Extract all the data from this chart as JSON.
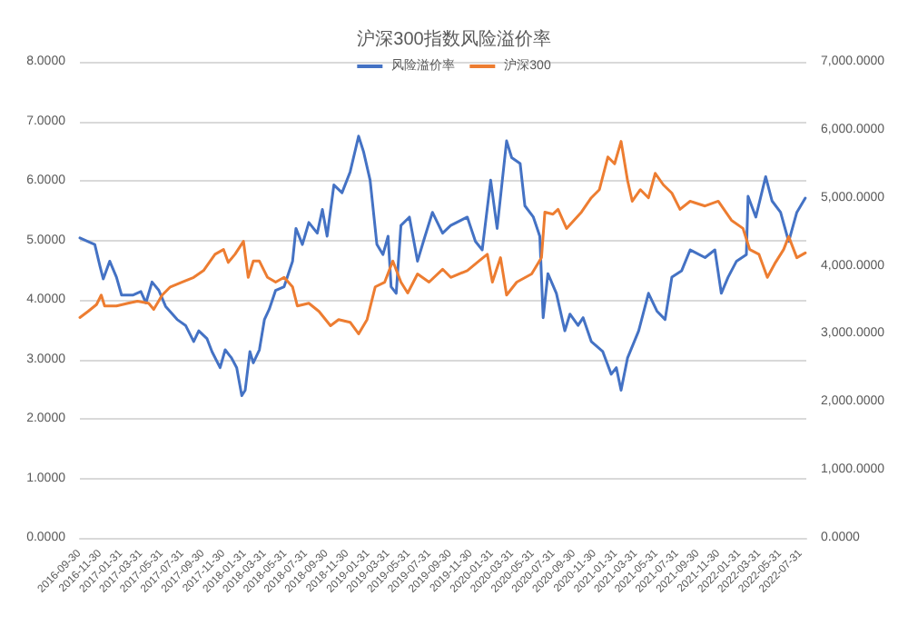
{
  "chart_data": {
    "type": "line",
    "title": "沪深300指数风险溢价率",
    "legend": "top",
    "grid": "y",
    "x": [
      "2016-09-30",
      "2016-10-24",
      "2016-11-13",
      "2016-11-28",
      "2016-12-08",
      "2016-12-27",
      "2017-01-16",
      "2017-01-31",
      "2017-03-05",
      "2017-03-29",
      "2017-04-13",
      "2017-05-01",
      "2017-05-21",
      "2017-06-10",
      "2017-07-14",
      "2017-08-08",
      "2017-09-01",
      "2017-09-16",
      "2017-10-10",
      "2017-10-25",
      "2017-11-18",
      "2017-12-03",
      "2017-12-22",
      "2018-01-06",
      "2018-01-21",
      "2018-01-31",
      "2018-02-14",
      "2018-02-24",
      "2018-03-14",
      "2018-03-29",
      "2018-04-12",
      "2018-05-01",
      "2018-05-26",
      "2018-06-20",
      "2018-06-30",
      "2018-07-19",
      "2018-08-07",
      "2018-09-01",
      "2018-09-16",
      "2018-09-30",
      "2018-10-20",
      "2018-11-13",
      "2018-12-07",
      "2019-01-01",
      "2019-01-16",
      "2019-02-04",
      "2019-02-24",
      "2019-03-14",
      "2019-03-29",
      "2019-04-07",
      "2019-04-22",
      "2019-05-06",
      "2019-05-31",
      "2019-06-24",
      "2019-07-14",
      "2019-08-07",
      "2019-09-06",
      "2019-09-30",
      "2019-11-18",
      "2019-12-12",
      "2020-01-01",
      "2020-01-26",
      "2020-02-14",
      "2020-03-04",
      "2020-03-13",
      "2020-03-28",
      "2020-04-22",
      "2020-05-06",
      "2020-05-31",
      "2020-06-19",
      "2020-06-29",
      "2020-07-13",
      "2020-08-07",
      "2020-09-01",
      "2020-09-16",
      "2020-10-10",
      "2020-10-25",
      "2020-11-18",
      "2020-12-22",
      "2021-01-16",
      "2021-01-31",
      "2021-02-14",
      "2021-03-05",
      "2021-04-07",
      "2021-05-06",
      "2021-05-31",
      "2021-06-24",
      "2021-07-14",
      "2021-08-12",
      "2021-09-06",
      "2021-10-20",
      "2021-11-18",
      "2021-12-07",
      "2021-12-27",
      "2022-01-21",
      "2022-02-19",
      "2022-02-24",
      "2022-03-19",
      "2022-04-17",
      "2022-05-06",
      "2022-05-31",
      "2022-06-24",
      "2022-07-18",
      "2022-08-12"
    ],
    "series": [
      {
        "name": "风险溢价率",
        "color": "#4472c4",
        "values": [
          5.04,
          4.98,
          4.93,
          4.57,
          4.35,
          4.65,
          4.38,
          4.08,
          4.08,
          4.14,
          3.95,
          4.3,
          4.16,
          3.89,
          3.67,
          3.57,
          3.3,
          3.48,
          3.35,
          3.13,
          2.86,
          3.16,
          3.02,
          2.86,
          2.39,
          2.48,
          3.13,
          2.94,
          3.16,
          3.67,
          3.84,
          4.16,
          4.22,
          4.65,
          5.2,
          4.93,
          5.3,
          5.12,
          5.52,
          5.07,
          5.93,
          5.8,
          6.15,
          6.75,
          6.48,
          6.01,
          4.93,
          4.76,
          5.07,
          4.22,
          4.11,
          5.25,
          5.39,
          4.65,
          5.03,
          5.47,
          5.12,
          5.25,
          5.39,
          4.98,
          4.84,
          6.01,
          5.2,
          6.2,
          6.67,
          6.39,
          6.29,
          5.58,
          5.39,
          5.07,
          3.7,
          4.44,
          4.11,
          3.48,
          3.76,
          3.57,
          3.7,
          3.3,
          3.13,
          2.75,
          2.86,
          2.48,
          3.02,
          3.48,
          4.11,
          3.81,
          3.67,
          4.38,
          4.49,
          4.84,
          4.71,
          4.84,
          4.11,
          4.38,
          4.65,
          4.76,
          5.74,
          5.39,
          6.07,
          5.66,
          5.47,
          4.98,
          5.47,
          5.71
        ]
      },
      {
        "name": "沪深300",
        "color": "#ed7d31",
        "axis": "y2",
        "x": [
          "2016-09-30",
          "2016-10-24",
          "2016-11-18",
          "2016-12-02",
          "2016-12-12",
          "2017-01-16",
          "2017-02-19",
          "2017-03-19",
          "2017-04-21",
          "2017-05-06",
          "2017-05-31",
          "2017-06-24",
          "2017-07-28",
          "2017-09-01",
          "2017-09-30",
          "2017-11-03",
          "2017-11-28",
          "2017-12-12",
          "2018-01-01",
          "2018-01-26",
          "2018-02-09",
          "2018-02-24",
          "2018-03-14",
          "2018-04-07",
          "2018-05-01",
          "2018-05-26",
          "2018-06-20",
          "2018-07-04",
          "2018-08-07",
          "2018-09-06",
          "2018-10-10",
          "2018-11-03",
          "2018-12-07",
          "2019-01-01",
          "2019-01-26",
          "2019-02-19",
          "2019-03-19",
          "2019-04-12",
          "2019-05-06",
          "2019-05-26",
          "2019-06-24",
          "2019-07-28",
          "2019-09-06",
          "2019-09-30",
          "2019-11-18",
          "2019-12-22",
          "2020-01-16",
          "2020-01-31",
          "2020-02-24",
          "2020-03-13",
          "2020-04-12",
          "2020-05-26",
          "2020-06-24",
          "2020-07-04",
          "2020-07-28",
          "2020-08-12",
          "2020-09-06",
          "2020-10-20",
          "2020-11-18",
          "2020-12-12",
          "2021-01-06",
          "2021-01-26",
          "2021-02-14",
          "2021-03-05",
          "2021-03-19",
          "2021-04-12",
          "2021-05-06",
          "2021-05-26",
          "2021-06-19",
          "2021-07-14",
          "2021-08-07",
          "2021-09-06",
          "2021-10-20",
          "2021-11-28",
          "2022-01-06",
          "2022-02-09",
          "2022-03-01",
          "2022-03-28",
          "2022-04-22",
          "2022-05-16",
          "2022-06-09",
          "2022-06-24",
          "2022-07-18",
          "2022-08-12"
        ],
        "values": [
          3240,
          3330,
          3430,
          3570,
          3410,
          3410,
          3450,
          3480,
          3450,
          3360,
          3570,
          3690,
          3760,
          3830,
          3930,
          4170,
          4240,
          4050,
          4170,
          4360,
          3830,
          4070,
          4070,
          3830,
          3760,
          3830,
          3690,
          3410,
          3450,
          3330,
          3120,
          3210,
          3170,
          3000,
          3210,
          3690,
          3760,
          4070,
          3760,
          3600,
          3880,
          3760,
          3950,
          3830,
          3930,
          4070,
          4170,
          3760,
          4120,
          3570,
          3760,
          3880,
          4120,
          4790,
          4760,
          4830,
          4550,
          4790,
          5000,
          5120,
          5600,
          5500,
          5830,
          5260,
          4950,
          5120,
          5000,
          5360,
          5190,
          5070,
          4830,
          4950,
          4880,
          4950,
          4670,
          4550,
          4240,
          4170,
          3830,
          4050,
          4240,
          4430,
          4120,
          4190
        ]
      }
    ],
    "xlim": [
      "2016-09-30",
      "2022-08-15"
    ],
    "xticks": [
      "2016-09-30",
      "2016-11-30",
      "2017-01-31",
      "2017-03-31",
      "2017-05-31",
      "2017-07-31",
      "2017-09-30",
      "2017-11-30",
      "2018-01-31",
      "2018-03-31",
      "2018-05-31",
      "2018-07-31",
      "2018-09-30",
      "2018-11-30",
      "2019-01-31",
      "2019-03-31",
      "2019-05-31",
      "2019-07-31",
      "2019-09-30",
      "2019-11-30",
      "2020-01-31",
      "2020-03-31",
      "2020-05-31",
      "2020-07-31",
      "2020-09-30",
      "2020-11-30",
      "2021-01-31",
      "2021-03-31",
      "2021-05-31",
      "2021-07-31",
      "2021-09-30",
      "2021-11-30",
      "2022-01-31",
      "2022-03-31",
      "2022-05-31",
      "2022-07-31"
    ],
    "ylim": [
      0,
      8
    ],
    "yticks": [
      {
        "value": 0,
        "label": "0.0000"
      },
      {
        "value": 1,
        "label": "1.0000"
      },
      {
        "value": 2,
        "label": "2.0000"
      },
      {
        "value": 3,
        "label": "3.0000"
      },
      {
        "value": 4,
        "label": "4.0000"
      },
      {
        "value": 5,
        "label": "5.0000"
      },
      {
        "value": 6,
        "label": "6.0000"
      },
      {
        "value": 7,
        "label": "7.0000"
      },
      {
        "value": 8,
        "label": "8.0000"
      }
    ],
    "y2lim": [
      0,
      7000
    ],
    "y2ticks": [
      {
        "value": 0,
        "label": "0.0000"
      },
      {
        "value": 1000,
        "label": "1,000.0000"
      },
      {
        "value": 2000,
        "label": "2,000.0000"
      },
      {
        "value": 3000,
        "label": "3,000.0000"
      },
      {
        "value": 4000,
        "label": "4,000.0000"
      },
      {
        "value": 5000,
        "label": "5,000.0000"
      },
      {
        "value": 6000,
        "label": "6,000.0000"
      },
      {
        "value": 7000,
        "label": "7,000.0000"
      }
    ]
  }
}
